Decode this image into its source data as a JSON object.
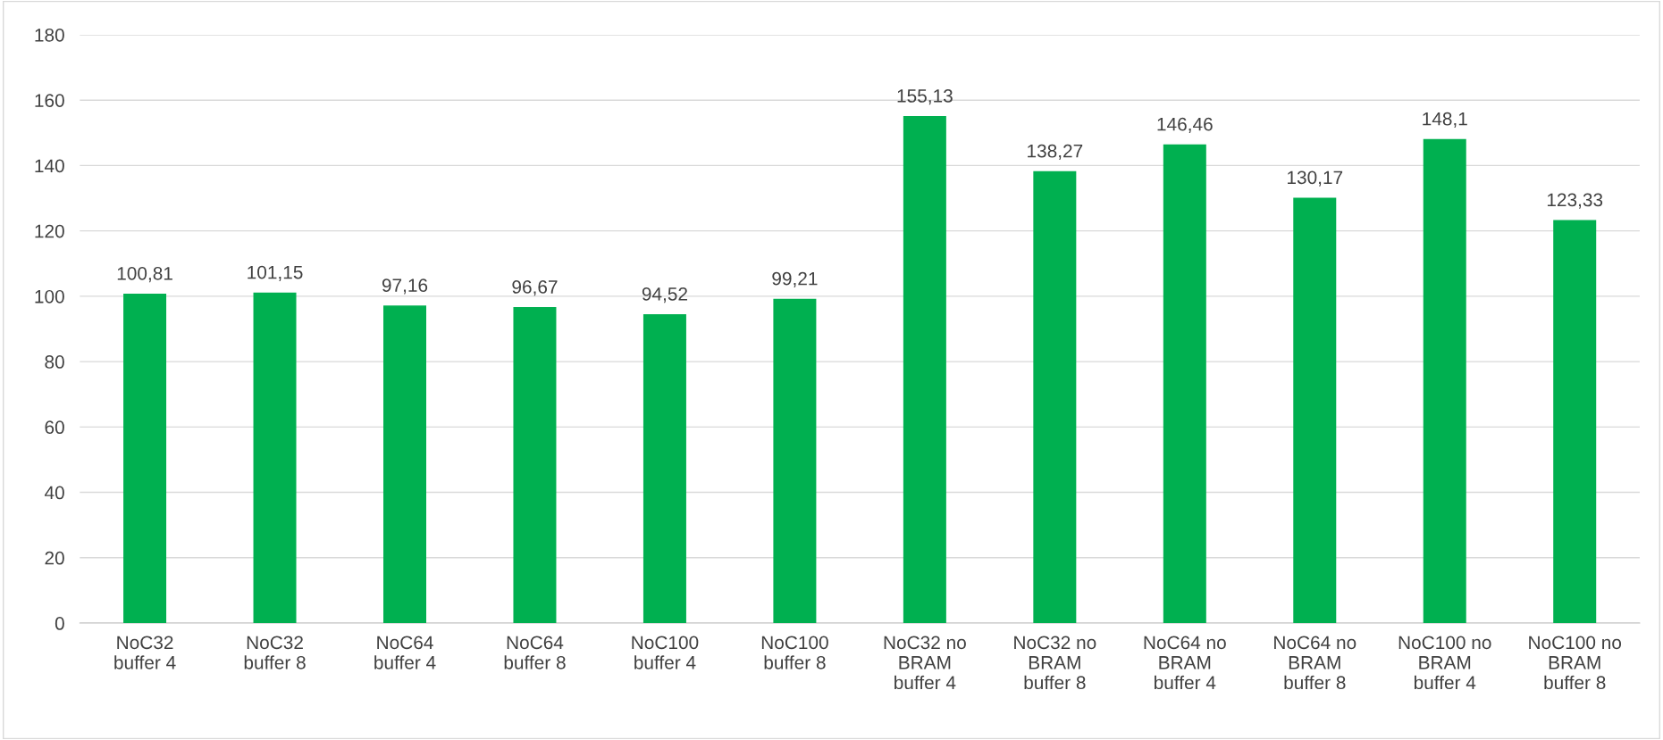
{
  "chart_data": {
    "type": "bar",
    "categories": [
      "NoC32\nbuffer 4",
      "NoC32\nbuffer 8",
      "NoC64\nbuffer 4",
      "NoC64\nbuffer 8",
      "NoC100\nbuffer 4",
      "NoC100\nbuffer 8",
      "NoC32 no\nBRAM\nbuffer 4",
      "NoC32 no\nBRAM\nbuffer 8",
      "NoC64 no\nBRAM\nbuffer 4",
      "NoC64 no\nBRAM\nbuffer 8",
      "NoC100 no\nBRAM\nbuffer 4",
      "NoC100 no\nBRAM\nbuffer 8"
    ],
    "values": [
      100.81,
      101.15,
      97.16,
      96.67,
      94.52,
      99.21,
      155.13,
      138.27,
      146.46,
      130.17,
      148.1,
      123.33
    ],
    "value_labels": [
      "100,81",
      "101,15",
      "97,16",
      "96,67",
      "94,52",
      "99,21",
      "155,13",
      "138,27",
      "146,46",
      "130,17",
      "148,1",
      "123,33"
    ],
    "color": "#00b050",
    "ylim": [
      0,
      180
    ],
    "yticks": [
      0,
      20,
      40,
      60,
      80,
      100,
      120,
      140,
      160,
      180
    ],
    "grid": "y"
  }
}
